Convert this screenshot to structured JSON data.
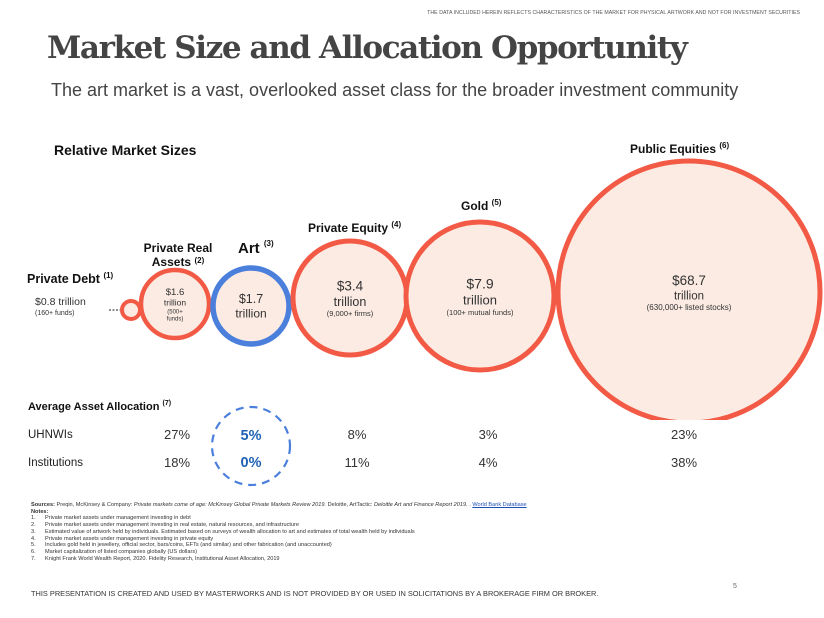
{
  "header": {
    "disclaimer": "THE DATA INCLUDED HEREIN REFLECTS CHARACTERISTICS OF THE MARKET FOR PHYSICAL ARTWORK AND NOT FOR INVESTMENT SECURITIES",
    "title": "Market Size and Allocation Opportunity",
    "subtitle": "The art market is a vast, overlooked asset class for the broader investment community"
  },
  "colors": {
    "bubble_stroke": "#f25a45",
    "bubble_fill": "#fbebe3",
    "art_stroke": "#4a7fdc",
    "art_text": "#1f62b5"
  },
  "chart_data": {
    "type": "bubble",
    "title": "Relative Market Sizes",
    "unit": "trillion USD",
    "series": [
      {
        "name": "Private Debt",
        "note": "(1)",
        "value": 0.8,
        "value_label": "$0.8 trillion",
        "detail": "(160+ funds)",
        "highlight": false
      },
      {
        "name": "Private Real Assets",
        "name_lines": [
          "Private Real",
          "Assets"
        ],
        "note": "(2)",
        "value": 1.6,
        "value_label": "$1.6",
        "unit_label": "trillion",
        "detail_lines": [
          "(500+",
          "funds)"
        ],
        "highlight": false
      },
      {
        "name": "Art",
        "note": "(3)",
        "value": 1.7,
        "value_label": "$1.7",
        "unit_label": "trillion",
        "highlight": true
      },
      {
        "name": "Private Equity",
        "note": "(4)",
        "value": 3.4,
        "value_label": "$3.4",
        "unit_label": "trillion",
        "detail": "(9,000+ firms)",
        "highlight": false
      },
      {
        "name": "Gold",
        "note": "(5)",
        "value": 7.9,
        "value_label": "$7.9",
        "unit_label": "trillion",
        "detail": "(100+ mutual funds)",
        "highlight": false
      },
      {
        "name": "Public Equities",
        "note": "(6)",
        "value": 68.7,
        "value_label": "$68.7",
        "unit_label": "trillion",
        "detail": "(630,000+ listed stocks)",
        "highlight": false
      }
    ],
    "allocation": {
      "title": "Average Asset Allocation",
      "note": "(7)",
      "columns": [
        "Private Debt / Private Real Assets",
        "Art",
        "Private Equity",
        "Gold",
        "Public Equities"
      ],
      "rows": [
        {
          "label": "UHNWIs",
          "values": [
            "27%",
            "5%",
            "8%",
            "3%",
            "23%"
          ]
        },
        {
          "label": "Institutions",
          "values": [
            "18%",
            "0%",
            "11%",
            "4%",
            "38%"
          ]
        }
      ]
    }
  },
  "notes": {
    "sources_label": "Sources:",
    "sources_text": "Preqin, McKinsey & Company: ",
    "sources_italic": "Private markets come of age: McKinsey Global Private Markets Review 2019.",
    "sources_text2": " Deloitte, ArtTactic: ",
    "sources_italic2": "Deloitte Art and Finance Report 2019.",
    "sources_text3": " . ",
    "sources_link": "World Bank Database",
    "notes_label": "Notes:",
    "items": [
      {
        "num": "1.",
        "text": "Private market assets under management investing in debt"
      },
      {
        "num": "2.",
        "text": "Private market assets under management investing in real estate, natural resources, and infrastructure"
      },
      {
        "num": "3.",
        "text": "Estimated value of artwork held by individuals. Estimated based on surveys of wealth allocation to art and estimates of total wealth held by individuals"
      },
      {
        "num": "4.",
        "text": "Private market assets under management investing in private equity"
      },
      {
        "num": "5.",
        "text": "Includes gold held in jewellery, official sector, bars/coins, EFTs (and similar) and other fabrication (and unaccounted)"
      },
      {
        "num": "6.",
        "text": "Market capitalization of listed companies globally (US dollars)"
      },
      {
        "num": "7.",
        "text": "Knight Frank World Wealth Report, 2020. Fidelity Research, Institutional Asset Allocation, 2019"
      }
    ]
  },
  "footer": {
    "text": "THIS PRESENTATION  IS CREATED AND USED BY MASTERWORKS AND IS NOT PROVIDED BY OR USED IN SOLICITATIONS BY A BROKERAGE FIRM OR BROKER.",
    "page": "5"
  }
}
